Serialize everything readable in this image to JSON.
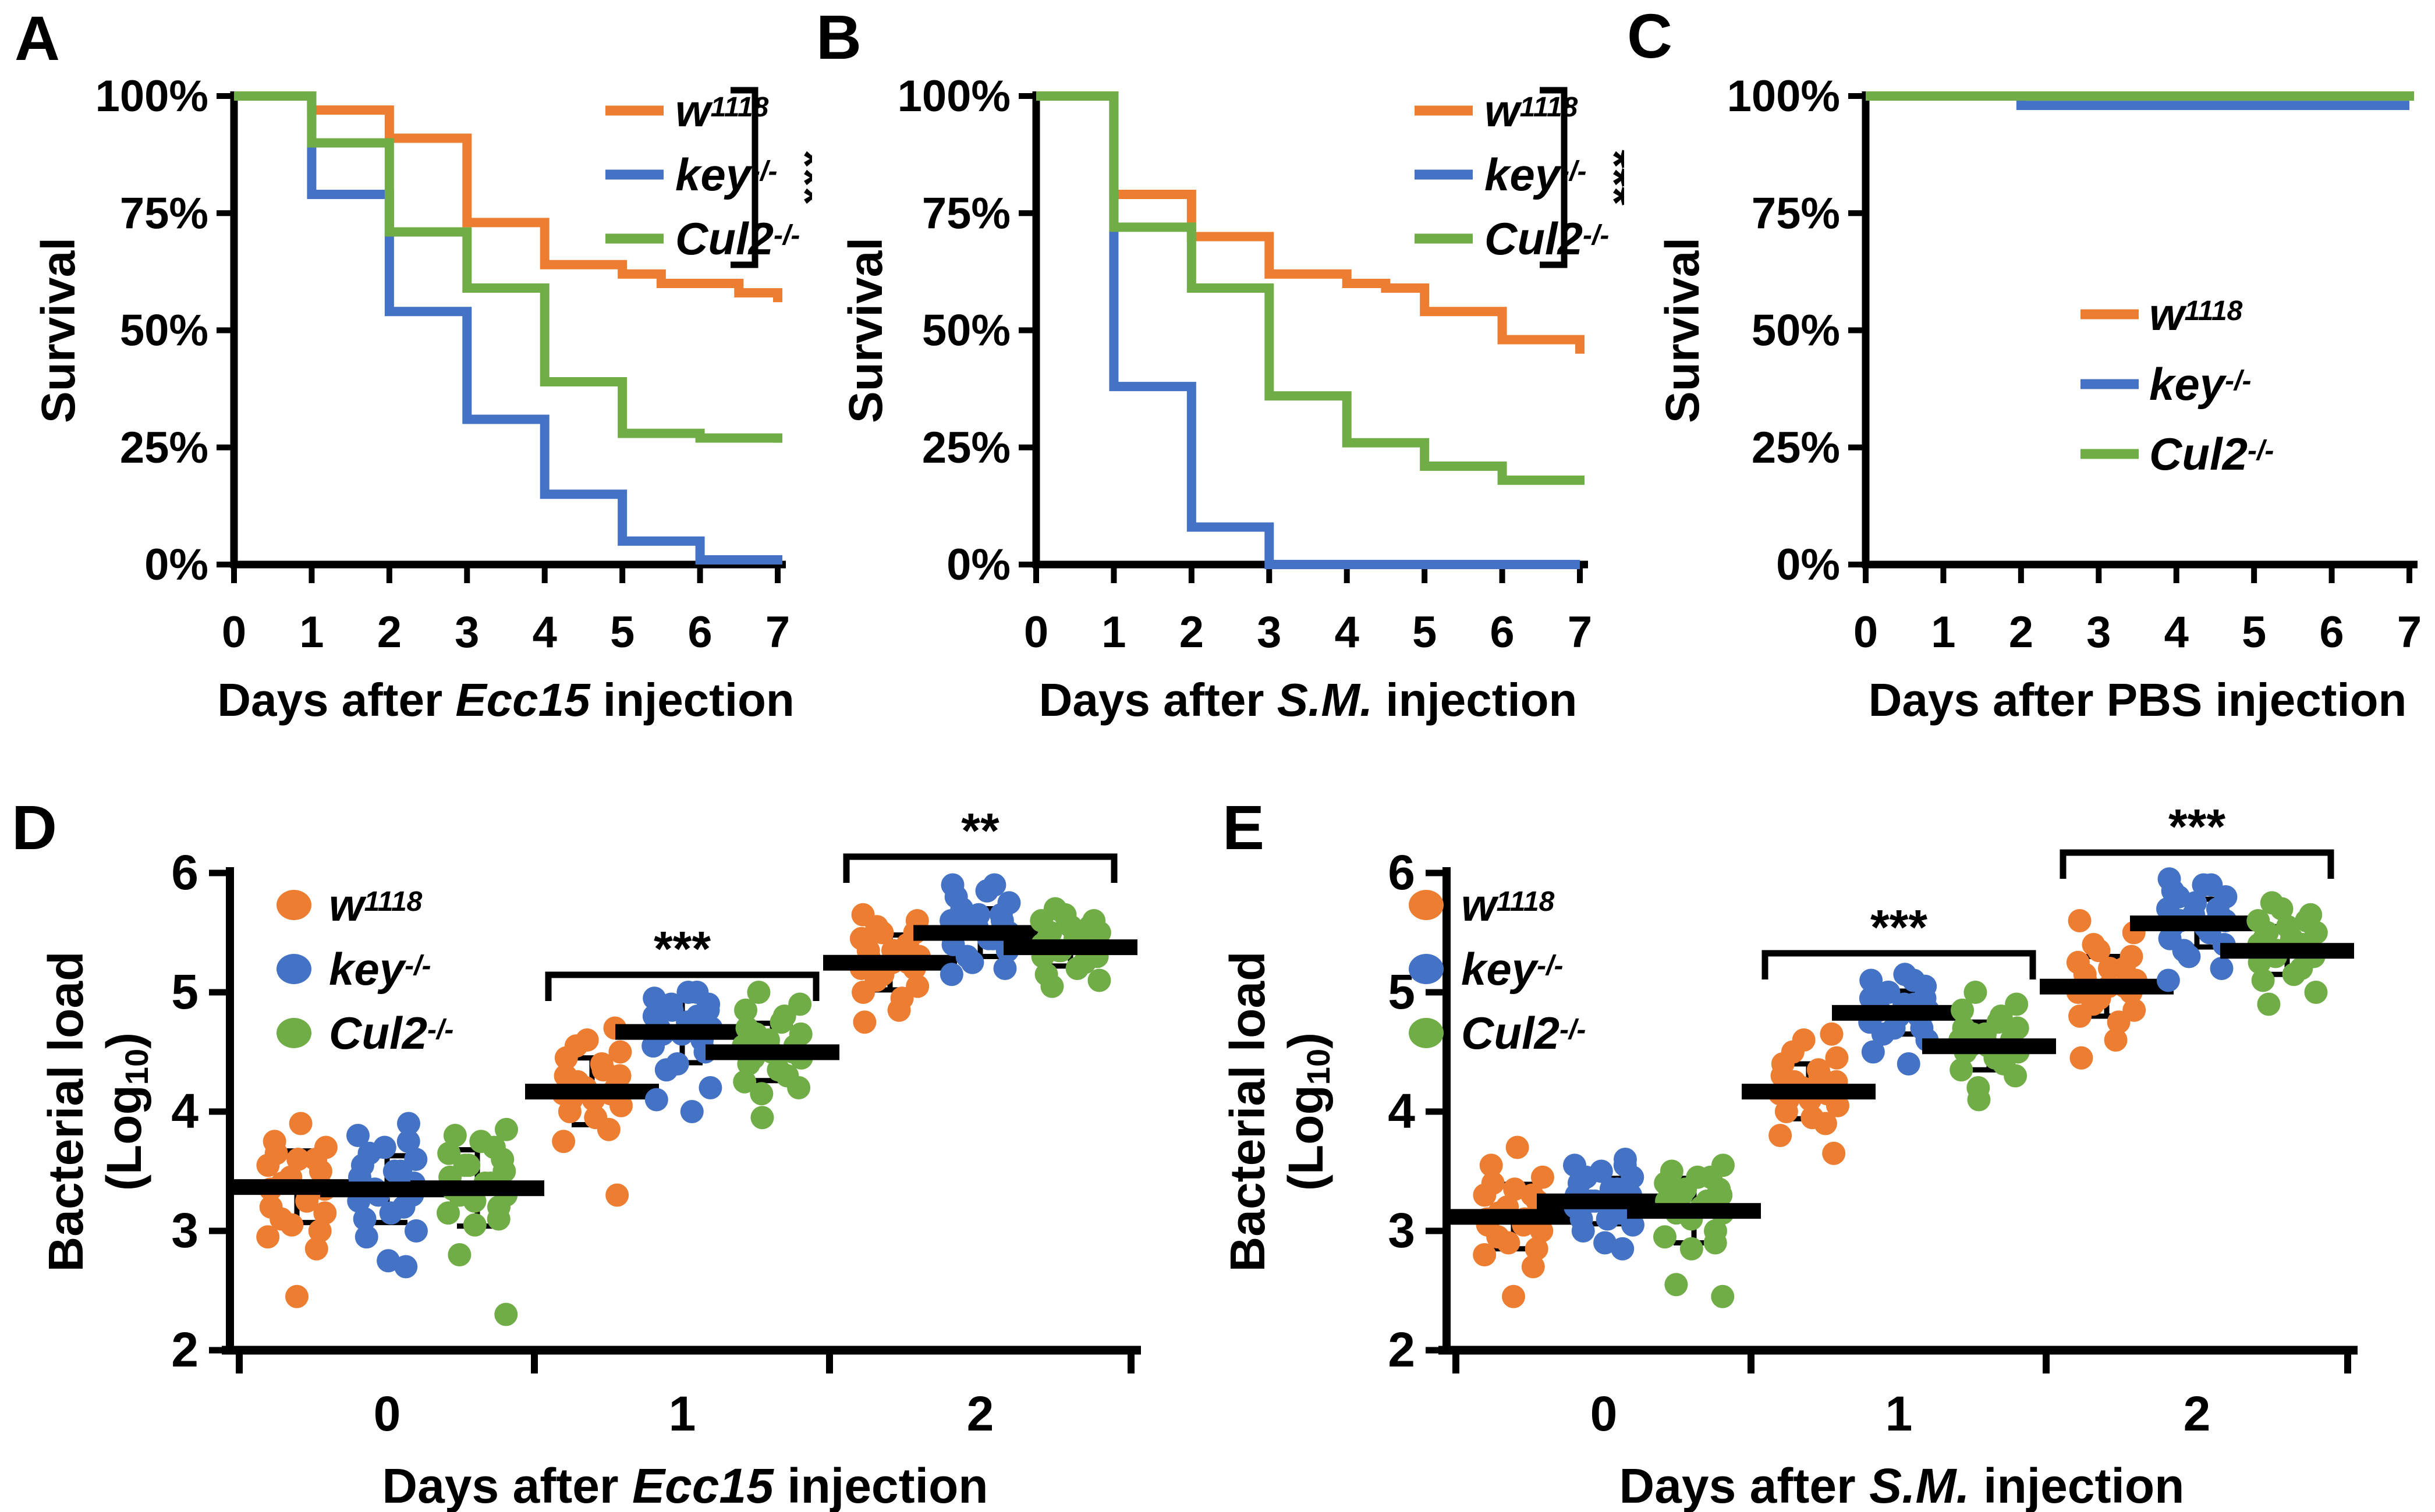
{
  "genotypes": [
    {
      "id": "w1118",
      "label_main": "w",
      "label_sup": "1118",
      "color": "#ED7D31"
    },
    {
      "id": "key",
      "label_main": "key",
      "label_sup": "-/-",
      "color": "#4472C4"
    },
    {
      "id": "cul2",
      "label_main": "Cul2",
      "label_sup": "-/-",
      "color": "#70AD47"
    }
  ],
  "axis_color": "#000000",
  "panels": [
    {
      "letter": "A",
      "type": "survival",
      "ylabel": "Survival",
      "xlabel": {
        "pre": "Days after ",
        "em": "Ecc15",
        "post": " injection",
        "em_italic": true
      },
      "yticks": [
        "100%",
        "75%",
        "50%",
        "25%",
        "0%"
      ],
      "xticks": [
        "0",
        "1",
        "2",
        "3",
        "4",
        "5",
        "6",
        "7"
      ],
      "xlim": [
        0,
        7
      ],
      "ylim": [
        0,
        100
      ],
      "legend_sig": "***",
      "series": [
        {
          "genotype": "w1118",
          "points": [
            [
              0,
              100
            ],
            [
              1,
              97
            ],
            [
              2,
              91
            ],
            [
              3,
              73
            ],
            [
              4,
              64
            ],
            [
              5,
              62
            ],
            [
              5.5,
              60
            ],
            [
              6.5,
              58
            ],
            [
              7,
              56
            ]
          ]
        },
        {
          "genotype": "key",
          "points": [
            [
              0,
              100
            ],
            [
              1,
              79
            ],
            [
              2,
              54
            ],
            [
              3,
              31
            ],
            [
              4,
              15
            ],
            [
              5,
              5
            ],
            [
              6,
              1
            ],
            [
              7,
              0
            ]
          ]
        },
        {
          "genotype": "cul2",
          "points": [
            [
              0,
              100
            ],
            [
              1,
              90
            ],
            [
              2,
              71
            ],
            [
              3,
              59
            ],
            [
              4,
              39
            ],
            [
              5,
              28
            ],
            [
              6,
              27
            ],
            [
              7,
              26
            ]
          ]
        }
      ]
    },
    {
      "letter": "B",
      "type": "survival",
      "ylabel": "Survival",
      "xlabel": {
        "pre": "Days after ",
        "em": "S.M.",
        "post": " injection",
        "em_italic": true
      },
      "yticks": [
        "100%",
        "75%",
        "50%",
        "25%",
        "0%"
      ],
      "xticks": [
        "0",
        "1",
        "2",
        "3",
        "4",
        "5",
        "6",
        "7"
      ],
      "xlim": [
        0,
        7
      ],
      "ylim": [
        0,
        100
      ],
      "legend_sig": "***",
      "series": [
        {
          "genotype": "w1118",
          "points": [
            [
              0,
              100
            ],
            [
              1,
              79
            ],
            [
              2,
              70
            ],
            [
              3,
              62
            ],
            [
              4,
              60
            ],
            [
              4.5,
              59
            ],
            [
              5,
              54
            ],
            [
              6,
              48
            ],
            [
              7,
              45
            ]
          ]
        },
        {
          "genotype": "key",
          "points": [
            [
              0,
              100
            ],
            [
              1,
              38
            ],
            [
              2,
              8
            ],
            [
              3,
              0
            ]
          ]
        },
        {
          "genotype": "cul2",
          "points": [
            [
              0,
              100
            ],
            [
              1,
              72
            ],
            [
              2,
              59
            ],
            [
              3,
              36
            ],
            [
              4,
              26
            ],
            [
              5,
              21
            ],
            [
              6,
              18
            ],
            [
              7,
              17
            ]
          ]
        }
      ]
    },
    {
      "letter": "C",
      "type": "survival",
      "ylabel": "Survival",
      "xlabel": {
        "pre": "Days after ",
        "em": "PBS",
        "post": " injection",
        "em_italic": false
      },
      "yticks": [
        "100%",
        "75%",
        "50%",
        "25%",
        "0%"
      ],
      "xticks": [
        "0",
        "1",
        "2",
        "3",
        "4",
        "5",
        "6",
        "7"
      ],
      "xlim": [
        0,
        7
      ],
      "ylim": [
        0,
        100
      ],
      "legend_sig": null,
      "series": [
        {
          "genotype": "w1118",
          "points": [
            [
              0,
              100
            ]
          ]
        },
        {
          "genotype": "key",
          "points": [
            [
              0,
              100
            ],
            [
              2,
              98
            ]
          ]
        },
        {
          "genotype": "cul2",
          "points": [
            [
              0,
              100
            ],
            [
              7,
              99
            ]
          ]
        }
      ]
    },
    {
      "letter": "D",
      "type": "scatter",
      "ylabel": {
        "line1": "Bacterial load",
        "line2_pre": "(Log",
        "line2_sub": "10",
        "line2_post": ")"
      },
      "xlabel": {
        "pre": "Days after ",
        "em": "Ecc15",
        "post": " injection",
        "em_italic": true
      },
      "yticks": [
        "6",
        "5",
        "4",
        "3",
        "2"
      ],
      "categories": [
        "0",
        "1",
        "2"
      ],
      "ylim": [
        2,
        6
      ],
      "significance": [
        {
          "category": "1",
          "label": "***"
        },
        {
          "category": "2",
          "label": "**"
        }
      ],
      "groups": [
        {
          "category": "0",
          "series": [
            {
              "genotype": "w1118",
              "mean": 3.37,
              "sd": 0.3,
              "points": [
                2.45,
                2.85,
                2.95,
                3.0,
                3.05,
                3.1,
                3.15,
                3.2,
                3.25,
                3.3,
                3.35,
                3.35,
                3.4,
                3.45,
                3.5,
                3.55,
                3.6,
                3.6,
                3.65,
                3.7,
                3.75,
                3.9
              ]
            },
            {
              "genotype": "key",
              "mean": 3.35,
              "sd": 0.28,
              "points": [
                2.7,
                2.75,
                2.95,
                3.0,
                3.1,
                3.15,
                3.2,
                3.25,
                3.3,
                3.3,
                3.35,
                3.4,
                3.45,
                3.5,
                3.5,
                3.55,
                3.6,
                3.65,
                3.7,
                3.75,
                3.8,
                3.9
              ]
            },
            {
              "genotype": "cul2",
              "mean": 3.36,
              "sd": 0.32,
              "points": [
                2.3,
                2.8,
                3.05,
                3.1,
                3.15,
                3.2,
                3.25,
                3.3,
                3.3,
                3.35,
                3.4,
                3.4,
                3.45,
                3.5,
                3.55,
                3.55,
                3.6,
                3.65,
                3.7,
                3.75,
                3.8,
                3.85
              ]
            }
          ]
        },
        {
          "category": "1",
          "series": [
            {
              "genotype": "w1118",
              "mean": 4.17,
              "sd": 0.28,
              "points": [
                3.3,
                3.75,
                3.85,
                3.95,
                4.0,
                4.05,
                4.1,
                4.1,
                4.15,
                4.15,
                4.2,
                4.2,
                4.25,
                4.3,
                4.3,
                4.35,
                4.4,
                4.45,
                4.5,
                4.55,
                4.6,
                4.7
              ]
            },
            {
              "genotype": "key",
              "mean": 4.67,
              "sd": 0.26,
              "points": [
                4.0,
                4.1,
                4.2,
                4.35,
                4.4,
                4.5,
                4.55,
                4.6,
                4.65,
                4.65,
                4.7,
                4.7,
                4.75,
                4.8,
                4.8,
                4.85,
                4.85,
                4.9,
                4.9,
                4.95,
                5.0,
                5.0
              ]
            },
            {
              "genotype": "cul2",
              "mean": 4.5,
              "sd": 0.24,
              "points": [
                3.95,
                4.15,
                4.2,
                4.25,
                4.3,
                4.35,
                4.4,
                4.45,
                4.45,
                4.5,
                4.5,
                4.55,
                4.55,
                4.6,
                4.65,
                4.65,
                4.7,
                4.75,
                4.8,
                4.85,
                4.9,
                5.0
              ]
            }
          ]
        },
        {
          "category": "2",
          "series": [
            {
              "genotype": "w1118",
              "mean": 5.25,
              "sd": 0.23,
              "points": [
                4.75,
                4.85,
                4.95,
                5.0,
                5.05,
                5.1,
                5.15,
                5.2,
                5.2,
                5.25,
                5.25,
                5.3,
                5.3,
                5.35,
                5.35,
                5.4,
                5.45,
                5.5,
                5.5,
                5.55,
                5.6,
                5.65
              ]
            },
            {
              "genotype": "key",
              "mean": 5.5,
              "sd": 0.2,
              "points": [
                5.15,
                5.2,
                5.25,
                5.3,
                5.35,
                5.4,
                5.45,
                5.45,
                5.5,
                5.5,
                5.55,
                5.55,
                5.6,
                5.6,
                5.65,
                5.65,
                5.7,
                5.75,
                5.8,
                5.85,
                5.9,
                5.9
              ]
            },
            {
              "genotype": "cul2",
              "mean": 5.38,
              "sd": 0.16,
              "points": [
                5.05,
                5.1,
                5.15,
                5.2,
                5.25,
                5.3,
                5.3,
                5.35,
                5.35,
                5.4,
                5.4,
                5.4,
                5.45,
                5.45,
                5.5,
                5.5,
                5.55,
                5.55,
                5.6,
                5.6,
                5.65,
                5.7
              ]
            }
          ]
        }
      ]
    },
    {
      "letter": "E",
      "type": "scatter",
      "ylabel": {
        "line1": "Bacterial load",
        "line2_pre": "(Log",
        "line2_sub": "10",
        "line2_post": ")"
      },
      "xlabel": {
        "pre": "Days after ",
        "em": "S.M.",
        "post": " injection",
        "em_italic": true
      },
      "yticks": [
        "6",
        "5",
        "4",
        "3",
        "2"
      ],
      "categories": [
        "0",
        "1",
        "2"
      ],
      "ylim": [
        2,
        6
      ],
      "significance": [
        {
          "category": "1",
          "label": "***"
        },
        {
          "category": "2",
          "label": "***"
        }
      ],
      "groups": [
        {
          "category": "0",
          "series": [
            {
              "genotype": "w1118",
              "mean": 3.12,
              "sd": 0.27,
              "points": [
                2.45,
                2.7,
                2.8,
                2.85,
                2.9,
                2.95,
                3.0,
                3.05,
                3.05,
                3.1,
                3.1,
                3.15,
                3.15,
                3.2,
                3.25,
                3.3,
                3.3,
                3.35,
                3.4,
                3.45,
                3.55,
                3.7
              ]
            },
            {
              "genotype": "key",
              "mean": 3.25,
              "sd": 0.19,
              "points": [
                2.85,
                2.9,
                3.0,
                3.05,
                3.1,
                3.1,
                3.15,
                3.2,
                3.2,
                3.25,
                3.25,
                3.3,
                3.3,
                3.35,
                3.35,
                3.4,
                3.45,
                3.45,
                3.5,
                3.55,
                3.55,
                3.6
              ]
            },
            {
              "genotype": "cul2",
              "mean": 3.17,
              "sd": 0.27,
              "points": [
                2.45,
                2.55,
                2.85,
                2.9,
                2.95,
                3.0,
                3.1,
                3.15,
                3.15,
                3.2,
                3.2,
                3.25,
                3.25,
                3.3,
                3.3,
                3.35,
                3.35,
                3.4,
                3.45,
                3.45,
                3.5,
                3.55
              ]
            }
          ]
        },
        {
          "category": "1",
          "series": [
            {
              "genotype": "w1118",
              "mean": 4.17,
              "sd": 0.23,
              "points": [
                3.65,
                3.8,
                3.9,
                3.95,
                4.0,
                4.05,
                4.1,
                4.1,
                4.15,
                4.15,
                4.2,
                4.2,
                4.25,
                4.25,
                4.3,
                4.3,
                4.35,
                4.4,
                4.45,
                4.5,
                4.6,
                4.65
              ]
            },
            {
              "genotype": "key",
              "mean": 4.83,
              "sd": 0.18,
              "points": [
                4.4,
                4.5,
                4.6,
                4.65,
                4.7,
                4.7,
                4.75,
                4.8,
                4.8,
                4.85,
                4.85,
                4.85,
                4.9,
                4.9,
                4.95,
                4.95,
                5.0,
                5.0,
                5.05,
                5.1,
                5.1,
                5.15
              ]
            },
            {
              "genotype": "cul2",
              "mean": 4.55,
              "sd": 0.2,
              "points": [
                4.1,
                4.2,
                4.3,
                4.35,
                4.4,
                4.45,
                4.5,
                4.5,
                4.55,
                4.55,
                4.55,
                4.6,
                4.6,
                4.65,
                4.65,
                4.7,
                4.7,
                4.75,
                4.8,
                4.85,
                4.9,
                5.0
              ]
            }
          ]
        },
        {
          "category": "2",
          "series": [
            {
              "genotype": "w1118",
              "mean": 5.05,
              "sd": 0.25,
              "points": [
                4.45,
                4.6,
                4.75,
                4.8,
                4.85,
                4.9,
                4.95,
                5.0,
                5.0,
                5.05,
                5.05,
                5.1,
                5.1,
                5.15,
                5.2,
                5.2,
                5.25,
                5.3,
                5.35,
                5.4,
                5.5,
                5.6
              ]
            },
            {
              "genotype": "key",
              "mean": 5.58,
              "sd": 0.2,
              "points": [
                5.1,
                5.2,
                5.3,
                5.35,
                5.4,
                5.45,
                5.5,
                5.55,
                5.55,
                5.6,
                5.6,
                5.65,
                5.65,
                5.7,
                5.7,
                5.75,
                5.8,
                5.8,
                5.85,
                5.9,
                5.9,
                5.95
              ]
            },
            {
              "genotype": "cul2",
              "mean": 5.35,
              "sd": 0.2,
              "points": [
                4.9,
                5.0,
                5.1,
                5.15,
                5.2,
                5.25,
                5.3,
                5.3,
                5.35,
                5.35,
                5.4,
                5.4,
                5.45,
                5.45,
                5.5,
                5.5,
                5.55,
                5.6,
                5.6,
                5.65,
                5.7,
                5.75
              ]
            }
          ]
        }
      ]
    }
  ]
}
